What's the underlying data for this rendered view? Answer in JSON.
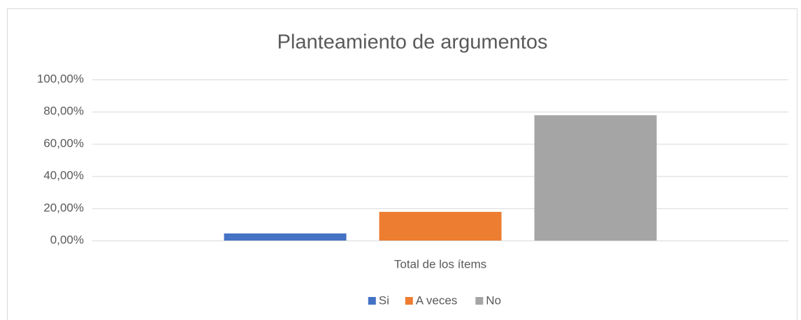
{
  "chart_data": {
    "type": "bar",
    "title": "Planteamiento de argumentos",
    "categories": [
      "Total de los ítems"
    ],
    "series": [
      {
        "name": "Si",
        "color": "#4472c4",
        "values": [
          4.4
        ]
      },
      {
        "name": "A veces",
        "color": "#ed7d31",
        "values": [
          17.8
        ]
      },
      {
        "name": "No",
        "color": "#a5a5a5",
        "values": [
          77.8
        ]
      }
    ],
    "ylim": [
      0,
      100
    ],
    "yticks": [
      {
        "value": 0,
        "label": "0,00%"
      },
      {
        "value": 20,
        "label": "20,00%"
      },
      {
        "value": 40,
        "label": "40,00%"
      },
      {
        "value": 60,
        "label": "60,00%"
      },
      {
        "value": 80,
        "label": "80,00%"
      },
      {
        "value": 100,
        "label": "100,00%"
      }
    ],
    "grid": true,
    "legend": "bottom"
  }
}
